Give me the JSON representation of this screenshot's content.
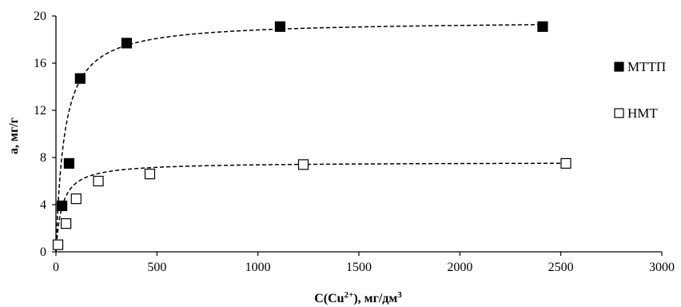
{
  "chart_data": {
    "type": "scatter",
    "xlabel": "C(Cu",
    "xlabel_sup": "2+",
    "xlabel_rest": "), мг/дм",
    "xlabel_sup2": "3",
    "ylabel": "a, мг/г",
    "xlim": [
      0,
      3000
    ],
    "ylim": [
      0,
      20
    ],
    "xticks": [
      0,
      500,
      1000,
      1500,
      2000,
      2500,
      3000
    ],
    "yticks": [
      0,
      4,
      8,
      12,
      16,
      20
    ],
    "grid": false,
    "legend_position": "right",
    "series": [
      {
        "name": "МТТП",
        "marker": "filled-square",
        "color": "#000000",
        "x": [
          30,
          65,
          120,
          350,
          1110,
          2410
        ],
        "y": [
          3.9,
          7.5,
          14.7,
          17.7,
          19.1,
          19.1
        ],
        "fit": {
          "type": "langmuir",
          "qmax": 19.6,
          "K": 0.024
        }
      },
      {
        "name": "НМТ",
        "marker": "open-square",
        "color": "#000000",
        "x": [
          10,
          50,
          100,
          210,
          465,
          1225,
          2525
        ],
        "y": [
          0.6,
          2.4,
          4.5,
          6.0,
          6.6,
          7.4,
          7.5
        ],
        "fit": {
          "type": "langmuir",
          "qmax": 7.6,
          "K": 0.033
        }
      }
    ]
  }
}
